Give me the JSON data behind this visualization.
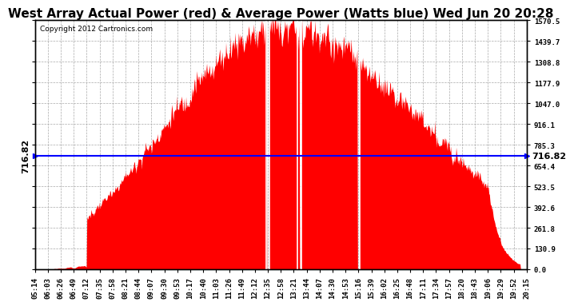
{
  "title": "West Array Actual Power (red) & Average Power (Watts blue) Wed Jun 20 20:28",
  "copyright": "Copyright 2012 Cartronics.com",
  "avg_power": 716.82,
  "ymax": 1570.5,
  "ymin": 0.0,
  "yticks": [
    0.0,
    130.9,
    261.8,
    392.6,
    523.5,
    654.4,
    785.3,
    916.1,
    1047.0,
    1177.9,
    1308.8,
    1439.7,
    1570.5
  ],
  "xtick_labels": [
    "05:14",
    "06:03",
    "06:26",
    "06:49",
    "07:12",
    "07:35",
    "07:58",
    "08:21",
    "08:44",
    "09:07",
    "09:30",
    "09:53",
    "10:17",
    "10:40",
    "11:03",
    "11:26",
    "11:49",
    "12:12",
    "12:35",
    "12:58",
    "13:21",
    "13:44",
    "14:07",
    "14:30",
    "14:53",
    "15:16",
    "15:39",
    "16:02",
    "16:25",
    "16:48",
    "17:11",
    "17:34",
    "17:57",
    "18:20",
    "18:43",
    "19:06",
    "19:29",
    "19:52",
    "20:15"
  ],
  "fill_color": "#FF0000",
  "line_color": "#0000FF",
  "background_color": "#FFFFFF",
  "grid_color": "#AAAAAA",
  "title_fontsize": 11,
  "copyright_fontsize": 6.5,
  "tick_fontsize": 6.5,
  "avg_label_fontsize": 8
}
